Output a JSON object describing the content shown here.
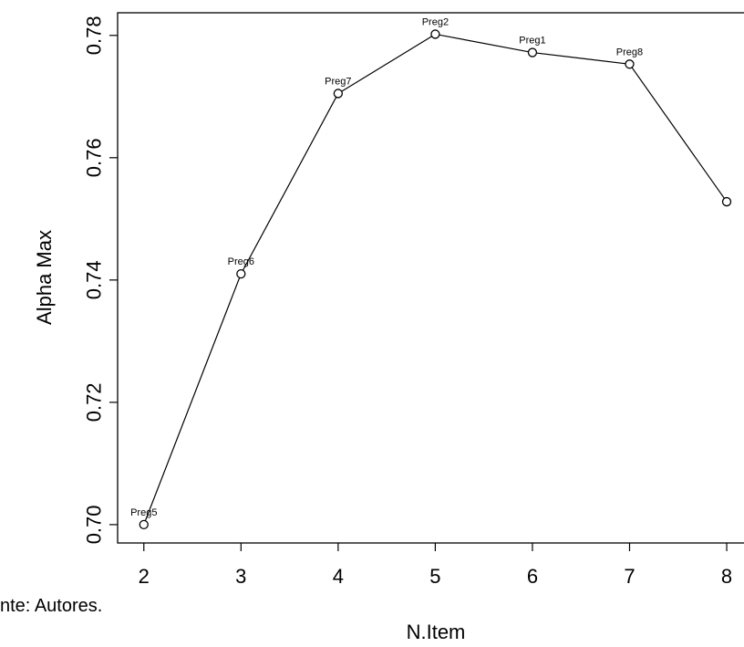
{
  "chart_data": {
    "type": "line",
    "xlabel": "N.Item",
    "ylabel": "Alpha Max",
    "x": [
      2,
      3,
      4,
      5,
      6,
      7,
      8
    ],
    "series": [
      {
        "values": [
          0.7,
          0.741,
          0.7705,
          0.7802,
          0.7772,
          0.7753,
          0.7528
        ],
        "point_labels": [
          "Preg5",
          "Preg6",
          "Preg7",
          "Preg2",
          "Preg1",
          "Preg8",
          ""
        ]
      }
    ],
    "xticks": [
      "2",
      "3",
      "4",
      "5",
      "6",
      "7",
      "8"
    ],
    "yticks": [
      "0.70",
      "0.72",
      "0.74",
      "0.76",
      "0.78"
    ],
    "xlim": [
      1.73,
      8.3
    ],
    "ylim": [
      0.697,
      0.7837
    ],
    "grid": false,
    "marker": "open-circle"
  },
  "caption": "nte: Autores."
}
